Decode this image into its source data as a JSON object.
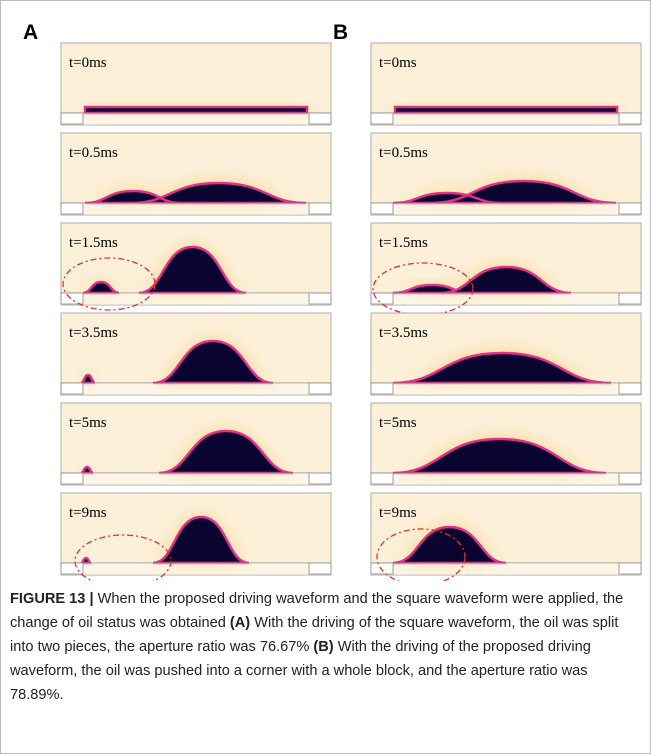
{
  "panels": [
    {
      "label": "A",
      "frames": [
        "t=0ms",
        "t=0.5ms",
        "t=1.5ms",
        "t=3.5ms",
        "t=5ms",
        "t=9ms"
      ]
    },
    {
      "label": "B",
      "frames": [
        "t=0ms",
        "t=0.5ms",
        "t=1.5ms",
        "t=3.5ms",
        "t=5ms",
        "t=9ms"
      ]
    }
  ],
  "caption": {
    "label": "FIGURE 13 |",
    "text1": "When the proposed driving waveform and the square waveform were applied, the change of oil status was obtained",
    "ref1": "(A)",
    "text2": "With the driving of the square waveform, the oil was split into two pieces, the aperture ratio was 76.67%",
    "ref2": "(B)",
    "text3": "With the driving of the proposed driving waveform, the oil was pushed into a corner with a whole block, and the aperture ratio was 78.89%."
  }
}
